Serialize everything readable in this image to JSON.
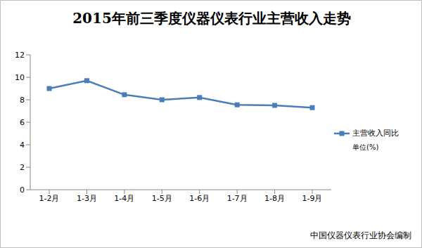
{
  "chart_data": {
    "type": "line",
    "title": "2015年前三季度仪器仪表行业主营收入走势",
    "categories": [
      "1-2月",
      "1-3月",
      "1-4月",
      "1-5月",
      "1-6月",
      "1-7月",
      "1-8月",
      "1-9月"
    ],
    "series": [
      {
        "name": "主营收入同比",
        "color": "#4a7ebb",
        "marker": "square",
        "values": [
          9.0,
          9.7,
          8.45,
          8.0,
          8.2,
          7.55,
          7.5,
          7.3
        ]
      }
    ],
    "ylim": [
      0,
      12
    ],
    "yticks": [
      0,
      2,
      4,
      6,
      8,
      10,
      12
    ],
    "grid": false,
    "legend": "right",
    "annotations": [
      "单位(%)",
      "中国仪器仪表行业协会编制"
    ]
  }
}
